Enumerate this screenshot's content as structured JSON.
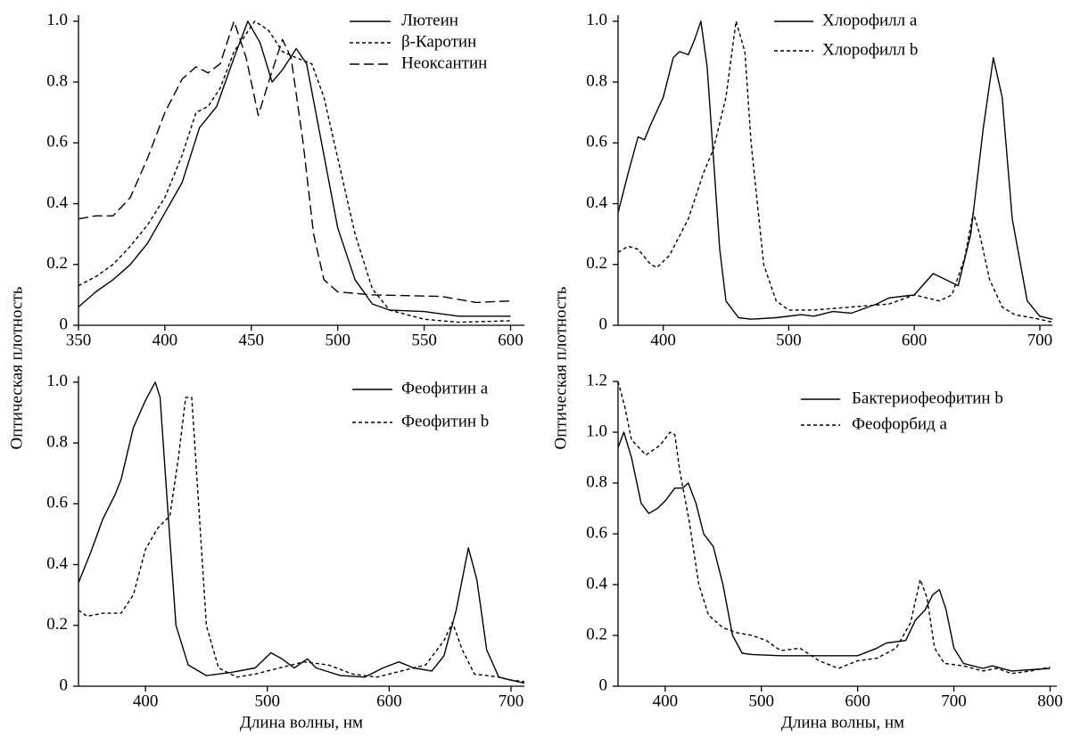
{
  "chart_data": [
    {
      "type": "line",
      "y_label": "Оптическая плотность",
      "xlim": [
        350,
        608
      ],
      "ylim": [
        0,
        1.02
      ],
      "xticks": [
        350,
        400,
        450,
        500,
        550,
        600
      ],
      "yticks": [
        0,
        0.2,
        0.4,
        0.6,
        0.8,
        {
          "value": 1,
          "label": "1.0"
        }
      ],
      "legend": "upper right",
      "series": [
        {
          "name": "Лютеин",
          "color": "#000",
          "style": "solid",
          "x": [
            350,
            360,
            370,
            380,
            390,
            400,
            410,
            420,
            430,
            440,
            448,
            455,
            462,
            468,
            476,
            482,
            490,
            500,
            510,
            520,
            530,
            550,
            570,
            600
          ],
          "values": [
            0.06,
            0.11,
            0.15,
            0.2,
            0.27,
            0.37,
            0.47,
            0.65,
            0.72,
            0.88,
            1.0,
            0.93,
            0.8,
            0.84,
            0.91,
            0.86,
            0.62,
            0.32,
            0.15,
            0.07,
            0.05,
            0.045,
            0.03,
            0.03
          ]
        },
        {
          "name": "β-Каротин",
          "color": "#000",
          "style": "short-dash",
          "x": [
            350,
            360,
            370,
            380,
            390,
            400,
            410,
            418,
            425,
            432,
            440,
            452,
            460,
            468,
            476,
            485,
            492,
            500,
            510,
            520,
            530,
            550,
            570,
            600
          ],
          "values": [
            0.13,
            0.16,
            0.2,
            0.26,
            0.33,
            0.42,
            0.56,
            0.7,
            0.72,
            0.78,
            0.9,
            1.0,
            0.97,
            0.9,
            0.88,
            0.86,
            0.75,
            0.55,
            0.3,
            0.12,
            0.05,
            0.02,
            0.01,
            0.015
          ]
        },
        {
          "name": "Неоксантин",
          "color": "#000",
          "style": "long-dash",
          "x": [
            350,
            360,
            370,
            380,
            390,
            400,
            410,
            418,
            425,
            432,
            440,
            447,
            454,
            460,
            468,
            473,
            480,
            486,
            492,
            500,
            520,
            560,
            580,
            600
          ],
          "values": [
            0.35,
            0.36,
            0.36,
            0.42,
            0.55,
            0.7,
            0.81,
            0.85,
            0.83,
            0.86,
            1.0,
            0.88,
            0.69,
            0.8,
            0.94,
            0.88,
            0.6,
            0.3,
            0.15,
            0.11,
            0.1,
            0.095,
            0.075,
            0.08
          ]
        }
      ]
    },
    {
      "type": "line",
      "y_label": "Оптическая плотность",
      "xlim": [
        364,
        710
      ],
      "ylim": [
        0,
        1.02
      ],
      "xticks": [
        400,
        500,
        600,
        700
      ],
      "yticks": [
        0,
        0.2,
        0.4,
        0.6,
        0.8,
        {
          "value": 1,
          "label": "1.0"
        }
      ],
      "legend": "upper right",
      "series": [
        {
          "name": "Хлорофилл a",
          "color": "#000",
          "style": "solid",
          "x": [
            364,
            372,
            380,
            385,
            390,
            400,
            408,
            413,
            420,
            425,
            430,
            435,
            440,
            445,
            450,
            460,
            470,
            490,
            510,
            520,
            535,
            550,
            570,
            580,
            600,
            615,
            625,
            635,
            645,
            655,
            663,
            670,
            678,
            690,
            700,
            710
          ],
          "values": [
            0.37,
            0.5,
            0.62,
            0.61,
            0.66,
            0.75,
            0.88,
            0.9,
            0.89,
            0.94,
            1.0,
            0.85,
            0.55,
            0.25,
            0.08,
            0.025,
            0.02,
            0.025,
            0.035,
            0.03,
            0.045,
            0.04,
            0.07,
            0.09,
            0.1,
            0.17,
            0.15,
            0.13,
            0.3,
            0.65,
            0.88,
            0.75,
            0.35,
            0.08,
            0.03,
            0.02
          ]
        },
        {
          "name": "Хлорофилл b",
          "color": "#000",
          "style": "short-dash",
          "x": [
            364,
            372,
            380,
            390,
            395,
            405,
            420,
            432,
            440,
            450,
            458,
            465,
            470,
            480,
            490,
            500,
            520,
            550,
            580,
            600,
            620,
            630,
            640,
            647,
            652,
            660,
            670,
            680,
            700,
            710
          ],
          "values": [
            0.24,
            0.26,
            0.25,
            0.2,
            0.19,
            0.23,
            0.35,
            0.5,
            0.58,
            0.75,
            1.0,
            0.9,
            0.6,
            0.2,
            0.08,
            0.05,
            0.05,
            0.06,
            0.07,
            0.1,
            0.08,
            0.1,
            0.22,
            0.37,
            0.3,
            0.15,
            0.06,
            0.035,
            0.02,
            0.01
          ]
        }
      ]
    },
    {
      "type": "line",
      "x_label": "Длина волны, нм",
      "xlim": [
        345,
        711
      ],
      "ylim": [
        0,
        1.02
      ],
      "xticks": [
        400,
        500,
        600,
        700
      ],
      "yticks": [
        0,
        0.2,
        0.4,
        0.6,
        0.8,
        {
          "value": 1,
          "label": "1.0"
        }
      ],
      "legend": "upper right",
      "series": [
        {
          "name": "Феофитин a",
          "color": "#000",
          "style": "solid",
          "x": [
            345,
            355,
            365,
            375,
            380,
            390,
            400,
            408,
            412,
            418,
            425,
            435,
            450,
            470,
            490,
            503,
            512,
            522,
            533,
            540,
            560,
            580,
            595,
            608,
            620,
            635,
            645,
            655,
            665,
            672,
            680,
            690,
            700,
            711
          ],
          "values": [
            0.34,
            0.44,
            0.55,
            0.63,
            0.68,
            0.85,
            0.94,
            1.0,
            0.95,
            0.6,
            0.2,
            0.07,
            0.035,
            0.045,
            0.06,
            0.11,
            0.09,
            0.06,
            0.09,
            0.06,
            0.035,
            0.03,
            0.06,
            0.08,
            0.06,
            0.05,
            0.1,
            0.25,
            0.455,
            0.35,
            0.12,
            0.03,
            0.02,
            0.01
          ]
        },
        {
          "name": "Феофитин b",
          "color": "#000",
          "style": "short-dash",
          "x": [
            345,
            352,
            365,
            380,
            390,
            400,
            410,
            420,
            427,
            433,
            438,
            442,
            450,
            460,
            475,
            490,
            510,
            530,
            550,
            570,
            590,
            610,
            630,
            645,
            652,
            660,
            670,
            690,
            700,
            711
          ],
          "values": [
            0.25,
            0.23,
            0.24,
            0.24,
            0.3,
            0.45,
            0.52,
            0.56,
            0.75,
            0.95,
            0.95,
            0.7,
            0.2,
            0.06,
            0.03,
            0.04,
            0.06,
            0.08,
            0.07,
            0.04,
            0.03,
            0.05,
            0.07,
            0.15,
            0.21,
            0.12,
            0.04,
            0.03,
            0.02,
            0.015
          ]
        }
      ]
    },
    {
      "type": "line",
      "x_label": "Длина волны, нм",
      "xlim": [
        351,
        807
      ],
      "ylim": [
        0,
        1.2
      ],
      "xticks": [
        400,
        500,
        600,
        700,
        800
      ],
      "yticks": [
        0,
        0.2,
        0.4,
        0.6,
        0.8,
        {
          "value": 1,
          "label": "1.0"
        },
        1.2
      ],
      "legend": "upper right",
      "series": [
        {
          "name": "Бактериофеофитин b",
          "color": "#000",
          "style": "solid",
          "x": [
            351,
            357,
            365,
            375,
            383,
            392,
            400,
            410,
            418,
            424,
            432,
            440,
            450,
            460,
            470,
            480,
            490,
            520,
            560,
            600,
            620,
            630,
            650,
            660,
            670,
            678,
            685,
            692,
            700,
            710,
            730,
            740,
            760,
            780,
            800
          ],
          "values": [
            0.94,
            1.0,
            0.9,
            0.72,
            0.68,
            0.7,
            0.73,
            0.78,
            0.78,
            0.8,
            0.72,
            0.6,
            0.55,
            0.4,
            0.2,
            0.13,
            0.125,
            0.12,
            0.12,
            0.12,
            0.15,
            0.17,
            0.18,
            0.26,
            0.3,
            0.36,
            0.38,
            0.3,
            0.15,
            0.09,
            0.07,
            0.08,
            0.06,
            0.065,
            0.07
          ]
        },
        {
          "name": "Феофорбид a",
          "color": "#000",
          "style": "short-dash",
          "x": [
            351,
            358,
            365,
            380,
            395,
            405,
            410,
            415,
            425,
            435,
            445,
            460,
            475,
            490,
            505,
            520,
            540,
            560,
            580,
            600,
            620,
            640,
            655,
            665,
            672,
            680,
            690,
            710,
            730,
            745,
            760,
            780,
            800
          ],
          "values": [
            1.2,
            1.1,
            0.97,
            0.91,
            0.95,
            1.0,
            0.99,
            0.85,
            0.65,
            0.4,
            0.28,
            0.23,
            0.21,
            0.2,
            0.18,
            0.14,
            0.15,
            0.1,
            0.07,
            0.1,
            0.11,
            0.15,
            0.25,
            0.42,
            0.35,
            0.15,
            0.09,
            0.08,
            0.06,
            0.07,
            0.05,
            0.06,
            0.075
          ]
        }
      ]
    }
  ]
}
